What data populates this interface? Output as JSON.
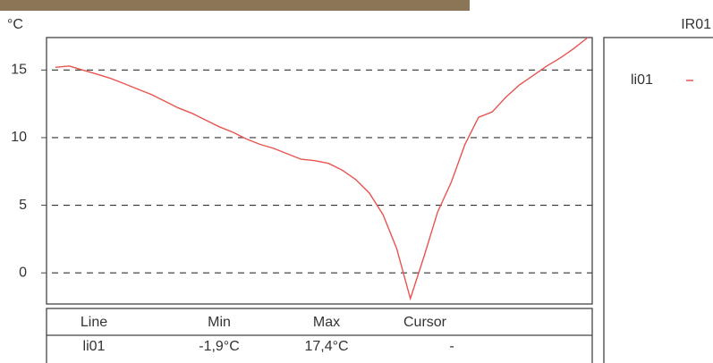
{
  "chart_data": {
    "type": "line",
    "y_label": "°C",
    "categories": [
      null,
      null,
      null,
      null,
      null,
      null,
      null,
      null,
      null,
      null,
      null,
      null,
      null,
      null,
      null,
      null,
      null,
      null,
      null,
      null,
      null,
      null,
      null,
      null,
      null,
      null,
      null,
      null,
      null,
      null,
      null,
      null,
      null,
      null,
      null,
      null,
      null,
      null,
      null,
      null
    ],
    "series": [
      {
        "name": "li01",
        "color": "#e8544f",
        "values": [
          15.2,
          15.3,
          15.0,
          14.7,
          14.4,
          14.0,
          13.6,
          13.2,
          12.7,
          12.2,
          11.8,
          11.3,
          10.8,
          10.4,
          9.9,
          9.5,
          9.2,
          8.8,
          8.4,
          8.3,
          8.1,
          7.6,
          6.9,
          5.9,
          4.3,
          1.8,
          -1.9,
          1.2,
          4.5,
          6.7,
          9.5,
          11.5,
          11.9,
          13.0,
          13.9,
          14.6,
          15.3,
          15.9,
          16.6,
          17.4
        ]
      }
    ],
    "ylim": [
      -2.3,
      17.4
    ],
    "yticks": [
      0,
      5,
      10,
      15
    ],
    "grid": true
  },
  "panel_title": "IR01",
  "table": {
    "header": [
      "Line",
      "Min",
      "Max",
      "Cursor"
    ],
    "rows": [
      [
        "li01",
        "-1,9°C",
        "17,4°C",
        "-"
      ]
    ]
  }
}
